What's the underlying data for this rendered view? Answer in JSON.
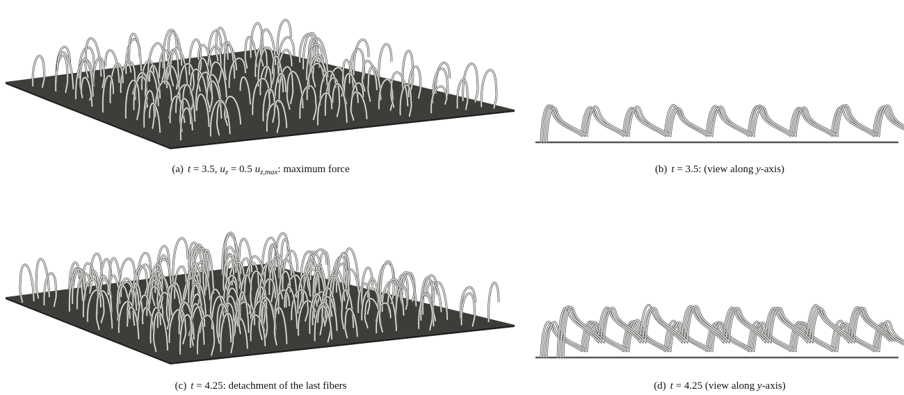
{
  "figure": {
    "panels": [
      {
        "caption": [
          "(a)",
          "t",
          " = 3.5, ",
          "u",
          "z",
          " = 0.5 ",
          "u",
          "z,max",
          ": maximum force"
        ]
      },
      {
        "caption": [
          "(b)",
          "t",
          " = 3.5: (view along ",
          "y",
          "-axis)"
        ]
      },
      {
        "caption": [
          "(c)",
          "t",
          " = 4.25: detachment of the last fibers"
        ]
      },
      {
        "caption": [
          "(d)",
          "t",
          " = 4.25 (view along ",
          "y",
          "-axis)"
        ]
      }
    ]
  }
}
